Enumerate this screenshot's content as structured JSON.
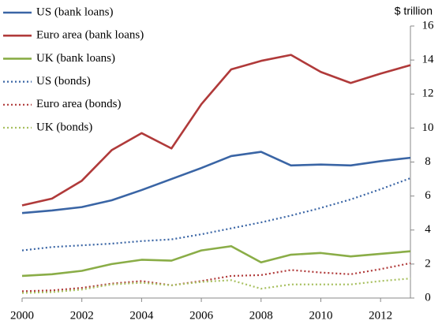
{
  "chart_data": {
    "type": "line",
    "y_axis_label": "$ trillion",
    "x": [
      2000,
      2001,
      2002,
      2003,
      2004,
      2005,
      2006,
      2007,
      2008,
      2009,
      2010,
      2011,
      2012,
      2013
    ],
    "series": [
      {
        "name": "US (bank loans)",
        "color": "#3a65a5",
        "style": "solid",
        "values": [
          5.0,
          5.15,
          5.35,
          5.75,
          6.35,
          7.0,
          7.65,
          8.35,
          8.6,
          7.8,
          7.85,
          7.8,
          8.05,
          8.25
        ]
      },
      {
        "name": "Euro area (bank loans)",
        "color": "#b03a3a",
        "style": "solid",
        "values": [
          5.45,
          5.85,
          6.9,
          8.7,
          9.7,
          8.8,
          11.4,
          13.45,
          13.95,
          14.3,
          13.3,
          12.65,
          13.2,
          13.7
        ]
      },
      {
        "name": "UK (bank loans)",
        "color": "#8aad47",
        "style": "solid",
        "values": [
          1.3,
          1.4,
          1.6,
          2.0,
          2.25,
          2.2,
          2.8,
          3.05,
          2.1,
          2.55,
          2.65,
          2.45,
          2.6,
          2.75
        ]
      },
      {
        "name": "US (bonds)",
        "color": "#3a65a5",
        "style": "dotted",
        "values": [
          2.8,
          3.0,
          3.1,
          3.2,
          3.35,
          3.45,
          3.75,
          4.1,
          4.45,
          4.85,
          5.3,
          5.8,
          6.4,
          7.05
        ]
      },
      {
        "name": "Euro area (bonds)",
        "color": "#b03a3a",
        "style": "dotted",
        "values": [
          0.4,
          0.45,
          0.6,
          0.85,
          1.0,
          0.75,
          1.0,
          1.3,
          1.35,
          1.65,
          1.5,
          1.4,
          1.7,
          2.05
        ]
      },
      {
        "name": "UK (bonds)",
        "color": "#a8c060",
        "style": "dotted",
        "values": [
          0.3,
          0.35,
          0.5,
          0.8,
          0.9,
          0.75,
          0.95,
          1.05,
          0.55,
          0.8,
          0.8,
          0.8,
          1.0,
          1.15
        ]
      }
    ],
    "xlim": [
      2000,
      2013
    ],
    "xticks": [
      2000,
      2002,
      2004,
      2006,
      2008,
      2010,
      2012
    ],
    "ylim": [
      0,
      16
    ],
    "yticks": [
      0,
      2,
      4,
      6,
      8,
      10,
      12,
      14,
      16
    ],
    "grid": false,
    "legend": "top-left"
  }
}
